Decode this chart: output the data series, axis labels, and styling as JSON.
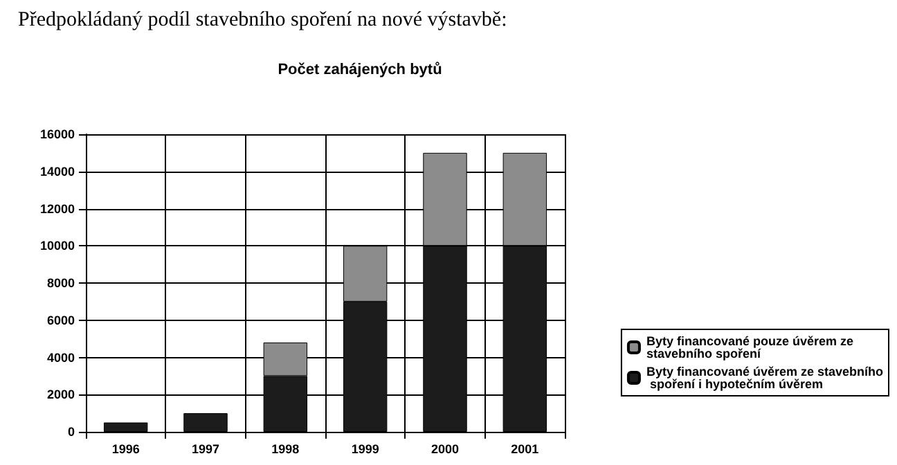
{
  "chart_data": {
    "type": "bar",
    "title": "Počet zahájených bytů",
    "annotations": [
      "Předpokládaný podíl stavebního spoření na nové výstavbě:"
    ],
    "categories": [
      "1996",
      "1997",
      "1998",
      "1999",
      "2000",
      "2001"
    ],
    "series": [
      {
        "name": "Byty financované úvěrem ze stavebního spoření i hypotečním úvěrem",
        "color": "#1c1c1c",
        "values": [
          500,
          1000,
          3000,
          7000,
          10000,
          10000
        ]
      },
      {
        "name": "Byty financované pouze úvěrem ze stavebního spoření",
        "color": "#8c8c8c",
        "values": [
          null,
          null,
          1800,
          3000,
          5000,
          5000
        ]
      }
    ],
    "stacked": true,
    "ylim": [
      0,
      16000
    ],
    "yticks": [
      0,
      2000,
      4000,
      6000,
      8000,
      10000,
      12000,
      14000,
      16000
    ],
    "grid": true,
    "legend": "right"
  }
}
